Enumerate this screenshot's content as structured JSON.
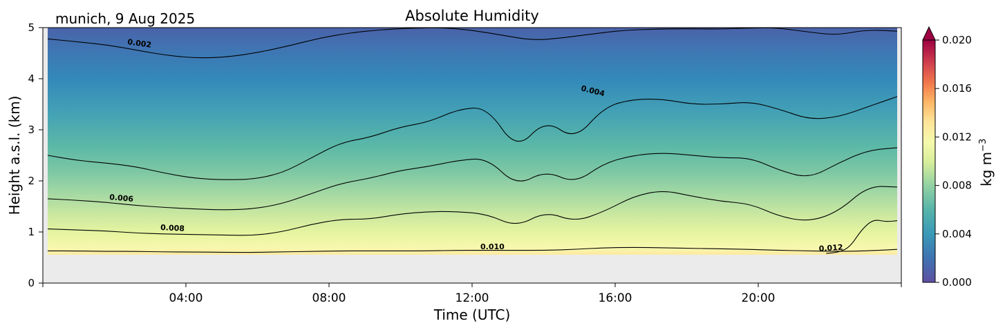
{
  "chart_data": {
    "type": "heatmap",
    "title": "Absolute Humidity",
    "subtitle": "munich, 9 Aug 2025",
    "xlabel": "Time (UTC)",
    "ylabel": "Height a.s.l. (km)",
    "xlim_hours": [
      0,
      24
    ],
    "ylim": [
      0,
      5
    ],
    "x_ticks": [
      {
        "hour": 4,
        "label": "04:00"
      },
      {
        "hour": 8,
        "label": "08:00"
      },
      {
        "hour": 12,
        "label": "12:00"
      },
      {
        "hour": 16,
        "label": "16:00"
      },
      {
        "hour": 20,
        "label": "20:00"
      }
    ],
    "y_ticks": [
      {
        "value": 0,
        "label": "0"
      },
      {
        "value": 1,
        "label": "1"
      },
      {
        "value": 2,
        "label": "2"
      },
      {
        "value": 3,
        "label": "3"
      },
      {
        "value": 4,
        "label": "4"
      },
      {
        "value": 5,
        "label": "5"
      }
    ],
    "no_data_below_km": 0.55,
    "colorbar": {
      "label_main": "kg m",
      "label_exp": "−3",
      "range": [
        0.0,
        0.02
      ],
      "extend": "max",
      "ticks": [
        {
          "value": 0.0,
          "label": "0.000"
        },
        {
          "value": 0.004,
          "label": "0.004"
        },
        {
          "value": 0.008,
          "label": "0.008"
        },
        {
          "value": 0.012,
          "label": "0.012"
        },
        {
          "value": 0.016,
          "label": "0.016"
        },
        {
          "value": 0.02,
          "label": "0.020"
        }
      ],
      "colors": [
        "#4a5fa8",
        "#3f73b1",
        "#3388ba",
        "#3a99b7",
        "#48a8b3",
        "#56b4a9",
        "#66bea4",
        "#7bc8a4",
        "#93d1a4",
        "#abdca3",
        "#c3e6a0",
        "#d9ef9b",
        "#eaf69f",
        "#f5f9ac",
        "#fdf5b0",
        "#fee59a",
        "#fdd080",
        "#fdb968",
        "#fa9c58",
        "#f27b4c",
        "#e55b4a",
        "#d3434e",
        "#bb2650",
        "#9e0142"
      ]
    },
    "contours": [
      {
        "level": 0.002,
        "label": "0.002",
        "height_km": [
          4.78,
          4.72,
          4.66,
          4.55,
          4.45,
          4.4,
          4.43,
          4.52,
          4.65,
          4.8,
          4.9,
          4.96,
          4.99,
          5.0,
          4.95,
          4.85,
          4.75,
          4.8,
          4.88,
          4.95,
          4.97,
          4.98,
          4.97,
          4.99,
          5.0,
          4.92,
          4.85,
          4.96,
          4.93
        ]
      },
      {
        "level": 0.004,
        "label": "0.004",
        "height_km": [
          2.5,
          2.4,
          2.35,
          2.28,
          2.15,
          2.05,
          2.02,
          2.03,
          2.15,
          2.45,
          2.75,
          2.85,
          3.05,
          3.15,
          3.4,
          3.45,
          2.6,
          3.2,
          2.8,
          3.45,
          3.6,
          3.6,
          3.5,
          3.5,
          3.55,
          3.4,
          3.2,
          3.25,
          3.45,
          3.65
        ]
      },
      {
        "level": 0.006,
        "label": "0.006",
        "height_km": [
          1.65,
          1.62,
          1.58,
          1.52,
          1.48,
          1.45,
          1.43,
          1.45,
          1.55,
          1.75,
          1.95,
          2.05,
          2.2,
          2.28,
          2.4,
          2.45,
          1.9,
          2.2,
          1.95,
          2.35,
          2.5,
          2.55,
          2.5,
          2.45,
          2.45,
          2.2,
          2.05,
          2.35,
          2.6,
          2.65
        ]
      },
      {
        "level": 0.008,
        "label": "0.008",
        "height_km": [
          1.06,
          1.04,
          1.02,
          0.98,
          0.96,
          0.95,
          0.94,
          0.93,
          1.0,
          1.15,
          1.25,
          1.25,
          1.35,
          1.4,
          1.4,
          1.35,
          1.1,
          1.4,
          1.2,
          1.4,
          1.7,
          1.82,
          1.7,
          1.6,
          1.55,
          1.3,
          1.2,
          1.4,
          1.9,
          1.88
        ]
      },
      {
        "level": 0.01,
        "label": "0.010",
        "height_km": [
          0.63,
          0.63,
          0.62,
          0.62,
          0.61,
          0.61,
          0.6,
          0.6,
          0.61,
          0.62,
          0.63,
          0.63,
          0.63,
          0.63,
          0.64,
          0.64,
          0.64,
          0.64,
          0.66,
          0.69,
          0.7,
          0.69,
          0.68,
          0.67,
          0.66,
          0.64,
          0.63,
          0.62,
          0.63,
          0.66
        ]
      },
      {
        "level": 0.012,
        "label": "0.012",
        "height_km": [
          0.58,
          0.6,
          0.7,
          1.05,
          1.25,
          1.2,
          1.22
        ]
      }
    ]
  }
}
